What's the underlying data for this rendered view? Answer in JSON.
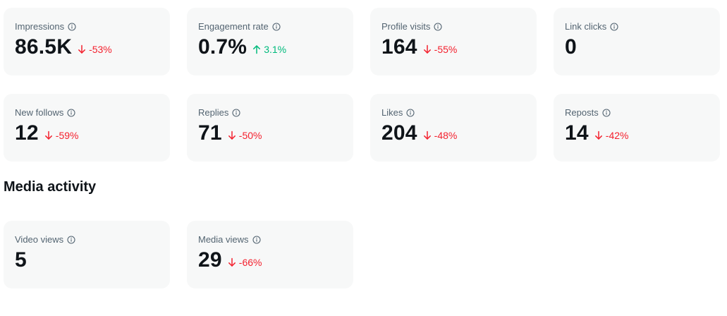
{
  "colors": {
    "card_bg": "#f7f8f8",
    "label": "#536471",
    "value": "#0f1419",
    "negative": "#f4212e",
    "positive": "#00ba7c"
  },
  "overview": {
    "cards": [
      {
        "label": "Impressions",
        "icon": "info-icon",
        "value": "86.5K",
        "change": "-53%",
        "trend": "down"
      },
      {
        "label": "Engagement rate",
        "icon": "info-icon",
        "value": "0.7%",
        "change": "3.1%",
        "trend": "up"
      },
      {
        "label": "Profile visits",
        "icon": "info-icon",
        "value": "164",
        "change": "-55%",
        "trend": "down"
      },
      {
        "label": "Link clicks",
        "icon": "info-icon",
        "value": "0",
        "change": "",
        "trend": "none"
      },
      {
        "label": "New follows",
        "icon": "info-icon",
        "value": "12",
        "change": "-59%",
        "trend": "down"
      },
      {
        "label": "Replies",
        "icon": "info-icon",
        "value": "71",
        "change": "-50%",
        "trend": "down"
      },
      {
        "label": "Likes",
        "icon": "info-icon",
        "value": "204",
        "change": "-48%",
        "trend": "down"
      },
      {
        "label": "Reposts",
        "icon": "info-icon",
        "value": "14",
        "change": "-42%",
        "trend": "down"
      }
    ]
  },
  "media": {
    "title": "Media activity",
    "cards": [
      {
        "label": "Video views",
        "icon": "info-icon",
        "value": "5",
        "change": "",
        "trend": "none"
      },
      {
        "label": "Media views",
        "icon": "info-icon",
        "value": "29",
        "change": "-66%",
        "trend": "down"
      }
    ]
  }
}
